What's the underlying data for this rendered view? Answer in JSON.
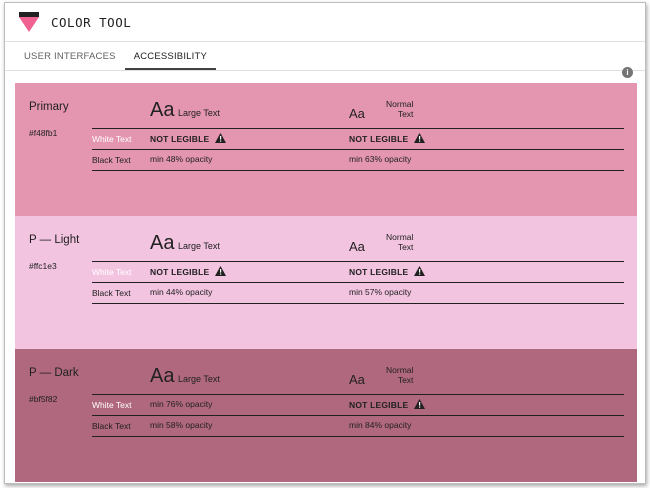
{
  "app": {
    "title": "COLOR TOOL"
  },
  "tabs": [
    {
      "label": "USER INTERFACES",
      "active": false
    },
    {
      "label": "ACCESSIBILITY",
      "active": true
    }
  ],
  "info_icon": "i",
  "sample_labels": {
    "aa": "Aa",
    "large_text": "Large Text",
    "normal_text_line1": "Normal",
    "normal_text_line2": "Text"
  },
  "row_labels": {
    "white": "White Text",
    "black": "Black Text"
  },
  "sections": [
    {
      "name": "Primary",
      "hex": "#f48fb1",
      "bg": "#e496b1",
      "white_label_color": "#ffffff",
      "white_large": "NOT LEGIBLE",
      "white_large_warn": true,
      "white_normal": "NOT LEGIBLE",
      "white_normal_warn": true,
      "black_large": "min 48% opacity",
      "black_normal": "min 63% opacity"
    },
    {
      "name": "P — Light",
      "hex": "#ffc1e3",
      "bg": "#f3c4e0",
      "white_label_color": "#ffffff",
      "white_large": "NOT LEGIBLE",
      "white_large_warn": true,
      "white_normal": "NOT LEGIBLE",
      "white_normal_warn": true,
      "black_large": "min 44% opacity",
      "black_normal": "min 57% opacity"
    },
    {
      "name": "P — Dark",
      "hex": "#bf5f82",
      "bg": "#b0687f",
      "white_label_color": "#ffffff",
      "white_large": "min 76% opacity",
      "white_large_warn": false,
      "white_normal": "NOT LEGIBLE",
      "white_normal_warn": true,
      "black_large": "min 58% opacity",
      "black_normal": "min 84% opacity"
    }
  ],
  "colors": {
    "logo_pink": "#f06292",
    "text_dark": "#212121"
  }
}
